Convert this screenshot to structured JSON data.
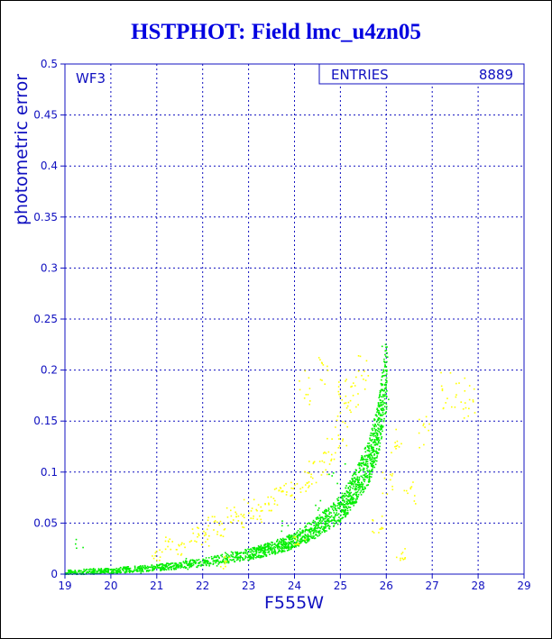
{
  "title": "HSTPHOT: Field lmc_u4zn05",
  "chart_data": {
    "type": "scatter",
    "title": "HSTPHOT: Field lmc_u4zn05",
    "xlabel": "F555W",
    "ylabel": "photometric error",
    "xlim": [
      19,
      29
    ],
    "ylim": [
      0,
      0.5
    ],
    "xticks": [
      "19",
      "20",
      "21",
      "22",
      "23",
      "24",
      "25",
      "26",
      "27",
      "28",
      "29"
    ],
    "yticks": [
      "0",
      "0.05",
      "0.1",
      "0.15",
      "0.2",
      "0.25",
      "0.3",
      "0.35",
      "0.4",
      "0.45",
      "0.5"
    ],
    "grid": true,
    "panel_label": "WF3",
    "stats_box": {
      "label": "ENTRIES",
      "value": "8889",
      "placement": "top-right"
    },
    "series": [
      {
        "color": "#00ee00",
        "trend": [
          [
            19.0,
            0.002
          ],
          [
            20.0,
            0.004
          ],
          [
            21.0,
            0.007
          ],
          [
            22.0,
            0.012
          ],
          [
            23.0,
            0.02
          ],
          [
            23.5,
            0.026
          ],
          [
            24.0,
            0.034
          ],
          [
            24.5,
            0.047
          ],
          [
            25.0,
            0.065
          ],
          [
            25.3,
            0.085
          ],
          [
            25.6,
            0.11
          ],
          [
            25.8,
            0.14
          ],
          [
            26.0,
            0.2
          ]
        ],
        "points": [
          [
            19.3,
            0.033
          ],
          [
            19.5,
            0.003
          ],
          [
            20.1,
            0.005
          ],
          [
            20.6,
            0.006
          ],
          [
            21.2,
            0.008
          ],
          [
            21.7,
            0.011
          ],
          [
            22.2,
            0.014
          ],
          [
            22.6,
            0.017
          ],
          [
            23.1,
            0.022
          ],
          [
            23.6,
            0.028
          ],
          [
            23.9,
            0.032
          ],
          [
            24.2,
            0.039
          ],
          [
            24.4,
            0.045
          ],
          [
            24.7,
            0.052
          ],
          [
            24.9,
            0.06
          ],
          [
            25.1,
            0.07
          ],
          [
            25.3,
            0.085
          ],
          [
            25.5,
            0.1
          ],
          [
            25.6,
            0.115
          ],
          [
            25.7,
            0.13
          ],
          [
            25.8,
            0.15
          ],
          [
            25.9,
            0.17
          ],
          [
            25.95,
            0.19
          ],
          [
            26.0,
            0.21
          ],
          [
            24.8,
            0.09
          ],
          [
            25.2,
            0.1
          ],
          [
            23.8,
            0.045
          ],
          [
            24.5,
            0.07
          ]
        ]
      },
      {
        "color": "#ffff00",
        "points": [
          [
            21.0,
            0.02
          ],
          [
            21.3,
            0.03
          ],
          [
            21.5,
            0.025
          ],
          [
            21.8,
            0.04
          ],
          [
            22.0,
            0.035
          ],
          [
            22.2,
            0.05
          ],
          [
            22.4,
            0.045
          ],
          [
            22.6,
            0.06
          ],
          [
            22.8,
            0.055
          ],
          [
            23.0,
            0.065
          ],
          [
            23.2,
            0.06
          ],
          [
            23.4,
            0.07
          ],
          [
            23.6,
            0.075
          ],
          [
            23.8,
            0.08
          ],
          [
            24.0,
            0.085
          ],
          [
            24.2,
            0.09
          ],
          [
            24.4,
            0.1
          ],
          [
            24.6,
            0.11
          ],
          [
            24.8,
            0.12
          ],
          [
            25.0,
            0.14
          ],
          [
            25.1,
            0.16
          ],
          [
            25.3,
            0.18
          ],
          [
            25.5,
            0.2
          ],
          [
            24.2,
            0.185
          ],
          [
            24.6,
            0.2
          ],
          [
            25.0,
            0.175
          ],
          [
            26.2,
            0.13
          ],
          [
            26.5,
            0.08
          ],
          [
            26.3,
            0.02
          ],
          [
            27.3,
            0.18
          ],
          [
            27.6,
            0.18
          ],
          [
            27.8,
            0.17
          ],
          [
            26.8,
            0.14
          ],
          [
            25.8,
            0.05
          ],
          [
            24.1,
            0.03
          ],
          [
            22.5,
            0.012
          ],
          [
            26.0,
            0.09
          ]
        ]
      }
    ]
  }
}
